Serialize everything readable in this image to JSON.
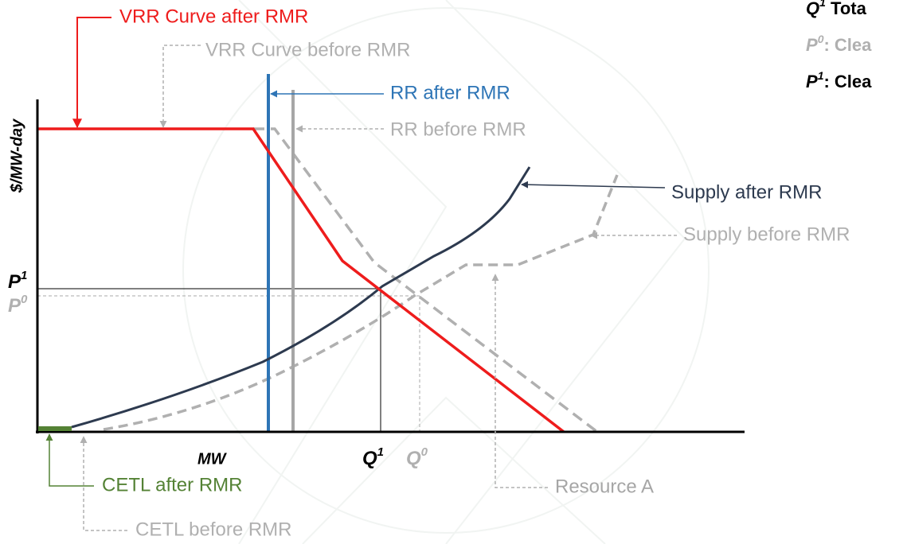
{
  "axes": {
    "y_label": "$/MW-day",
    "x_label": "MW"
  },
  "annotations": {
    "vrr_after": "VRR Curve after RMR",
    "vrr_before": "VRR Curve before RMR",
    "rr_after": "RR after RMR",
    "rr_before": "RR before RMR",
    "supply_after": "Supply after RMR",
    "supply_before": "Supply before RMR",
    "resource_a": "Resource A",
    "cetl_after": "CETL after RMR",
    "cetl_before": "CETL before RMR"
  },
  "points": {
    "p1": {
      "base": "P",
      "sup": "1"
    },
    "p0": {
      "base": "P",
      "sup": "0"
    },
    "q1": {
      "base": "Q",
      "sup": "1"
    },
    "q0": {
      "base": "Q",
      "sup": "0"
    }
  },
  "legend": [
    {
      "base": "Q",
      "sup": "1",
      "text": " Tota"
    },
    {
      "base": "P",
      "sup": "0",
      "text": ": Clea"
    },
    {
      "base": "P",
      "sup": "1",
      "text": ": Clea"
    }
  ]
}
